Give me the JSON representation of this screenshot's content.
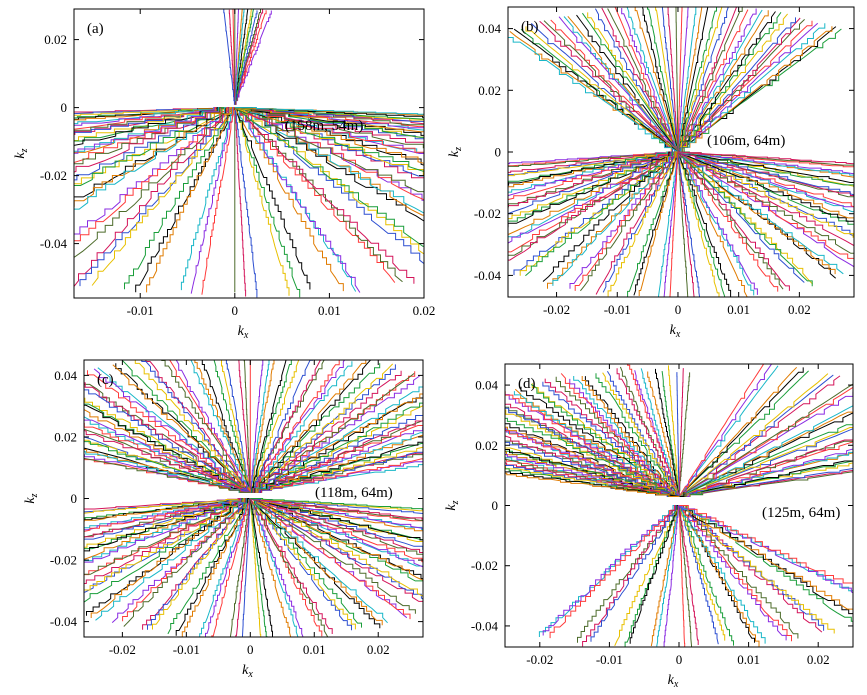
{
  "figure": {
    "title": ""
  },
  "palette": [
    "#d4145a",
    "#2d4fd1",
    "#e8c000",
    "#1a9e3a",
    "#000000",
    "#e07b00",
    "#19b7c8",
    "#8a2be2",
    "#ff3b3b",
    "#4c6b2a"
  ],
  "chart_data": [
    {
      "type": "line",
      "panel_label": "(a)",
      "annotation": "(158m, 54m)",
      "xlabel": "k",
      "xlabel_sub": "x",
      "ylabel": "k",
      "ylabel_sub": "z",
      "xlim": [
        -0.017,
        0.02
      ],
      "ylim": [
        -0.056,
        0.029
      ],
      "xticks": [
        -0.01,
        0,
        0.01,
        0.02
      ],
      "xtick_labels": [
        "-0.01",
        "0",
        "0.01",
        "0.02"
      ],
      "yticks": [
        0.02,
        0,
        -0.02,
        -0.04
      ],
      "ytick_labels": [
        "0.02",
        "0",
        "-0.02",
        "-0.04"
      ],
      "annotation_pos": [
        0.004,
        -0.007
      ],
      "families": [
        {
          "origin": [
            0.0,
            0.0
          ],
          "angles_deg": [
            -175,
            -170,
            -163,
            -156,
            -149,
            -142,
            -135,
            -128,
            -121,
            -114,
            -108,
            -102,
            -96,
            -90,
            -84,
            -78,
            -72,
            -66,
            -60,
            -54,
            -48,
            -42,
            -36,
            -30,
            -25,
            -20,
            -16,
            -12,
            -8
          ],
          "length": 0.055,
          "jag": 0.25,
          "terrace": 0.7
        },
        {
          "origin": [
            0.0,
            0.001
          ],
          "angles_deg": [
            82,
            84,
            86,
            88,
            90
          ],
          "length": 0.028,
          "jag": 0.1,
          "terrace": 0.5
        }
      ]
    },
    {
      "type": "line",
      "panel_label": "(b)",
      "annotation": "(106m, 64m)",
      "xlabel": "k",
      "xlabel_sub": "x",
      "ylabel": "k",
      "ylabel_sub": "z",
      "xlim": [
        -0.028,
        0.029
      ],
      "ylim": [
        -0.047,
        0.047
      ],
      "xticks": [
        -0.02,
        -0.01,
        0,
        0.01,
        0.02
      ],
      "xtick_labels": [
        "-0.02",
        "-0.01",
        "0",
        "0.01",
        "0.02"
      ],
      "yticks": [
        0.04,
        0.02,
        0,
        -0.02,
        -0.04
      ],
      "ytick_labels": [
        "0.04",
        "0.02",
        "0",
        "-0.02",
        "-0.04"
      ],
      "annotation_pos": [
        0.005,
        0.005
      ],
      "families": [
        {
          "origin": [
            0.0,
            0.0
          ],
          "angles_deg": [
            56,
            60,
            64,
            68,
            72,
            76,
            80,
            84,
            88,
            92,
            96,
            100,
            104,
            108,
            112,
            116,
            120,
            124
          ],
          "length": 0.048,
          "jag": 0.12,
          "terrace": 0.3
        },
        {
          "origin": [
            0.0,
            0.0
          ],
          "angles_deg": [
            -172,
            -166,
            -160,
            -154,
            -148,
            -142,
            -136,
            -130,
            -124,
            -118,
            -112,
            -106,
            -100,
            -94,
            -88,
            -82,
            -76,
            -70,
            -64,
            -58,
            -52,
            -46,
            -40,
            -34,
            -28,
            -22,
            -16,
            -10
          ],
          "length": 0.048,
          "jag": 0.2,
          "terrace": 0.5
        }
      ]
    },
    {
      "type": "line",
      "panel_label": "(c)",
      "annotation": "(118m, 64m)",
      "xlabel": "k",
      "xlabel_sub": "x",
      "ylabel": "k",
      "ylabel_sub": "z",
      "xlim": [
        -0.026,
        0.027
      ],
      "ylim": [
        -0.045,
        0.045
      ],
      "xticks": [
        -0.02,
        -0.01,
        0,
        0.01,
        0.02
      ],
      "xtick_labels": [
        "-0.02",
        "-0.01",
        "0",
        "0.01",
        "0.02"
      ],
      "yticks": [
        0.04,
        0.02,
        0,
        -0.02,
        -0.04
      ],
      "ytick_labels": [
        "0.04",
        "0.02",
        "0",
        "-0.02",
        "-0.04"
      ],
      "annotation_pos": [
        0.01,
        0.003
      ],
      "families": [
        {
          "origin": [
            0.0,
            0.002
          ],
          "angles_deg": [
            20,
            25,
            30,
            35,
            40,
            45,
            50,
            55,
            60,
            65,
            70,
            75,
            80,
            85,
            90,
            95,
            100,
            105,
            110,
            115,
            120,
            125,
            130,
            135,
            140,
            145,
            150,
            155
          ],
          "length": 0.047,
          "jag": 0.22,
          "terrace": 0.55
        },
        {
          "origin": [
            0.0,
            0.0
          ],
          "angles_deg": [
            -172,
            -166,
            -160,
            -154,
            -148,
            -142,
            -136,
            -130,
            -124,
            -118,
            -112,
            -106,
            -100,
            -94,
            -88,
            -82,
            -76,
            -70,
            -64,
            -58,
            -52,
            -46,
            -40,
            -34,
            -28,
            -22,
            -16,
            -10
          ],
          "length": 0.046,
          "jag": 0.22,
          "terrace": 0.55
        }
      ]
    },
    {
      "type": "line",
      "panel_label": "(d)",
      "annotation": "(125m, 64m)",
      "xlabel": "k",
      "xlabel_sub": "x",
      "ylabel": "k",
      "ylabel_sub": "z",
      "xlim": [
        -0.025,
        0.025
      ],
      "ylim": [
        -0.047,
        0.047
      ],
      "xticks": [
        -0.02,
        -0.01,
        0,
        0.01,
        0.02
      ],
      "xtick_labels": [
        "-0.02",
        "-0.01",
        "0",
        "0.01",
        "0.02"
      ],
      "yticks": [
        0.04,
        0.02,
        0,
        -0.02,
        -0.04
      ],
      "ytick_labels": [
        "0.04",
        "0.02",
        "0",
        "-0.02",
        "-0.04"
      ],
      "annotation_pos": [
        0.006,
        -0.001
      ],
      "families": [
        {
          "origin": [
            0.0,
            0.003
          ],
          "angles_deg": [
            18,
            24,
            30,
            36,
            42,
            48,
            54,
            60,
            66,
            72
          ],
          "length": 0.046,
          "jag": 0.1,
          "terrace": 0.2
        },
        {
          "origin": [
            0.0,
            0.003
          ],
          "angles_deg": [
            88,
            92,
            96,
            100,
            104,
            108,
            112,
            116,
            120,
            124,
            128,
            132,
            136,
            140,
            144,
            148,
            152,
            156,
            160
          ],
          "length": 0.043,
          "jag": 0.35,
          "terrace": 0.8
        },
        {
          "origin": [
            0.0,
            0.0
          ],
          "angles_deg": [
            -115,
            -108,
            -101,
            -95,
            -89,
            -83,
            -77,
            -71,
            -64,
            -57,
            -50
          ],
          "length": 0.047,
          "jag": 0.35,
          "terrace": 0.75
        }
      ]
    }
  ]
}
